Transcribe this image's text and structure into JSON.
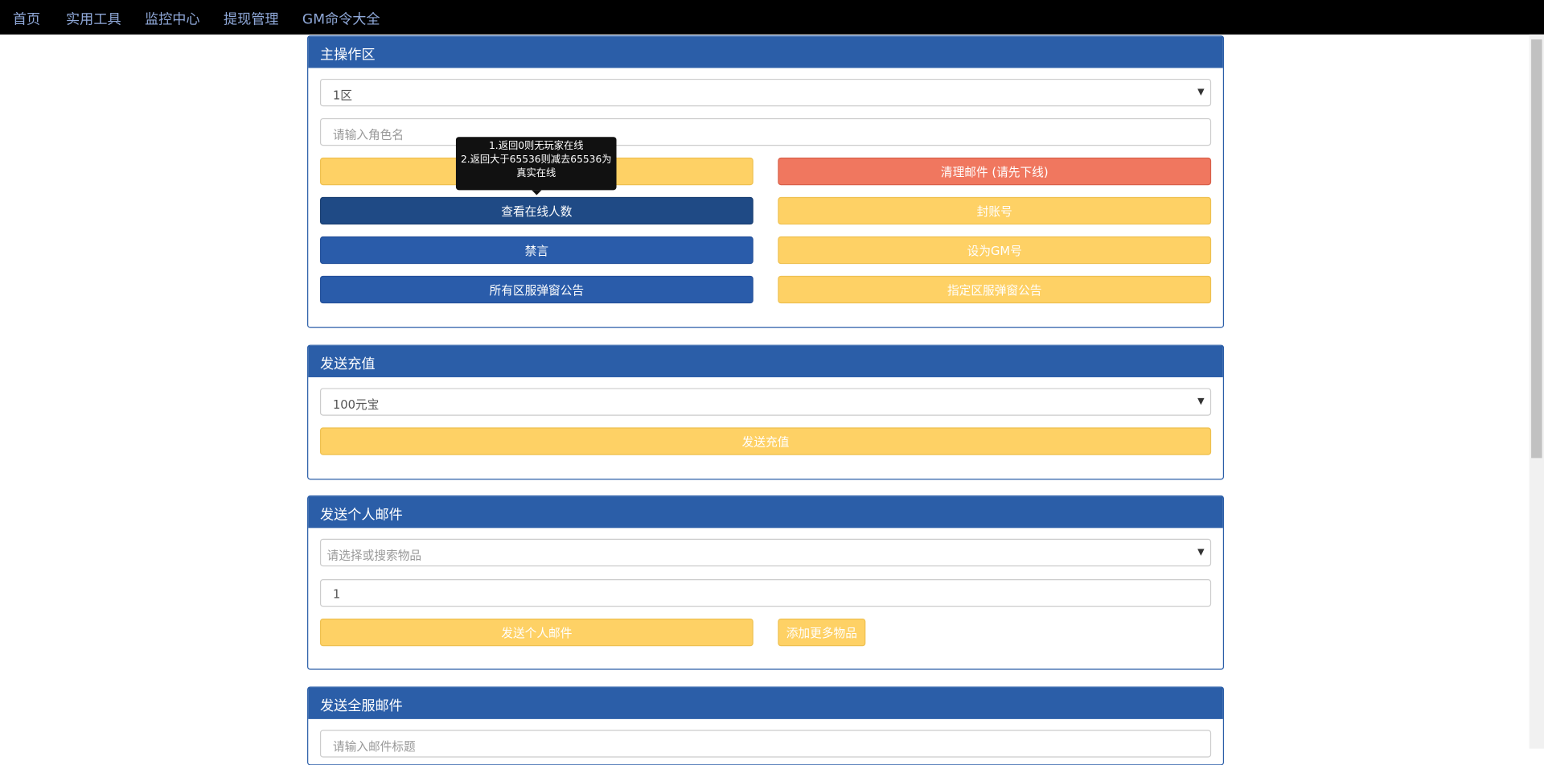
{
  "nav": [
    "首页",
    "实用工具",
    "监控中心",
    "提现管理",
    "GM命令大全"
  ],
  "panels": [
    {
      "title": "主操作区",
      "select": "1区",
      "input": "请输入角色名",
      "buttons": [
        "清理邮件 (请先下线)",
        "查看在线人数",
        "封账号",
        "禁言",
        "设为GM号",
        "所有区服弹窗公告",
        "指定区服弹窗公告"
      ]
    },
    {
      "title": "发送充值",
      "select": "100元宝",
      "buttons": [
        "发送充值"
      ]
    },
    {
      "title": "发送个人邮件",
      "select": "请选择或搜索物品",
      "input": "1",
      "buttons": [
        "发送个人邮件",
        "添加更多物品"
      ]
    },
    {
      "title": "发送全服邮件",
      "input": "请输入邮件标题"
    }
  ],
  "tooltip": [
    "1.返回0则无玩家在线",
    "2.返回大于65536则减去65536为",
    "真实在线"
  ]
}
